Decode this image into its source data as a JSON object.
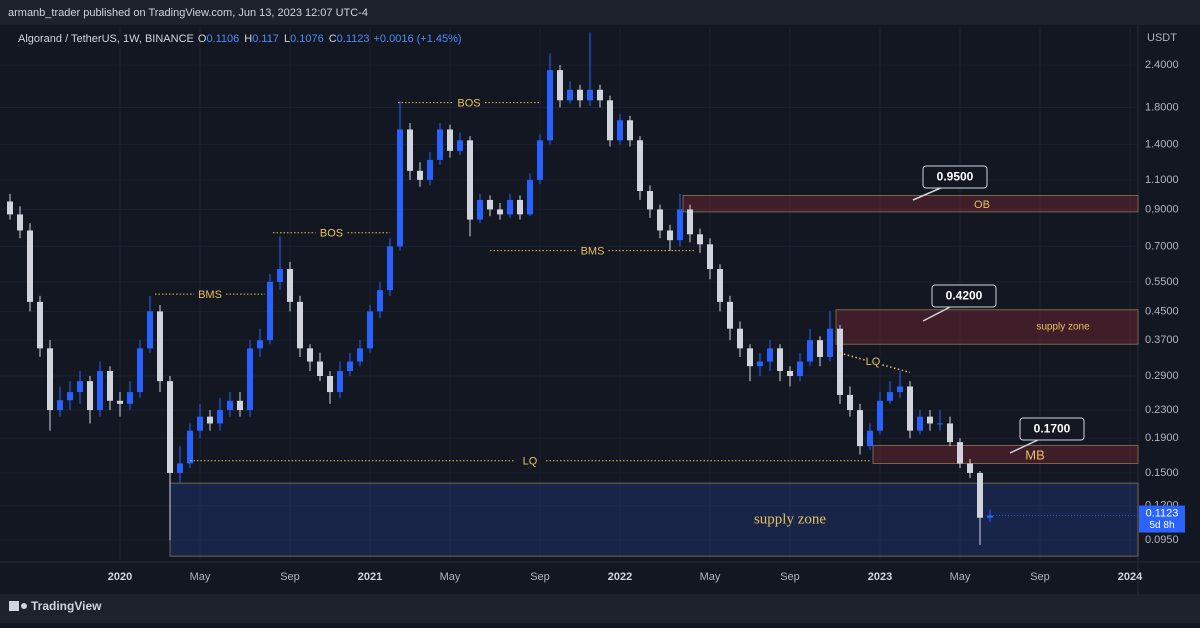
{
  "header": {
    "publisher": "armanb_trader published on TradingView.com, Jun 13, 2023 12:07 UTC-4",
    "footer": "TradingView"
  },
  "chart_data": {
    "type": "candlestick",
    "symbol": "Algorand / TetherUS, 1W, BINANCE",
    "ohlc_legend": [
      {
        "label": "O",
        "value": 0.1106
      },
      {
        "label": "H",
        "value": 0.117
      },
      {
        "label": "L",
        "value": 0.1076
      },
      {
        "label": "C",
        "value": 0.1123
      }
    ],
    "change": "+0.0016 (+1.45%)",
    "currency": "USDT",
    "log_scale": true,
    "up_color": "#2962ff",
    "down_color": "#d1d4dc",
    "categories": [
      null,
      null,
      null,
      null,
      null,
      null,
      null,
      null,
      null,
      null,
      null,
      "2020",
      null,
      null,
      null,
      null,
      null,
      null,
      null,
      "May",
      null,
      null,
      null,
      null,
      null,
      null,
      null,
      null,
      "Sep",
      null,
      null,
      null,
      null,
      null,
      null,
      null,
      "2021",
      null,
      null,
      null,
      null,
      null,
      null,
      null,
      "May",
      null,
      null,
      null,
      null,
      null,
      null,
      null,
      null,
      "Sep",
      null,
      null,
      null,
      null,
      null,
      null,
      null,
      "2022",
      null,
      null,
      null,
      null,
      null,
      null,
      null,
      null,
      "May",
      null,
      null,
      null,
      null,
      null,
      null,
      null,
      "Sep",
      null,
      null,
      null,
      null,
      null,
      null,
      null,
      null,
      "2023",
      null,
      null,
      null,
      null,
      null,
      null,
      null,
      "May",
      null,
      null,
      null,
      null,
      null,
      null,
      null,
      "Sep",
      null,
      null,
      null,
      null,
      null,
      null,
      null,
      null,
      "2024"
    ],
    "open": [
      0.95,
      0.87,
      0.78,
      0.48,
      0.35,
      0.23,
      0.246,
      0.26,
      0.28,
      0.23,
      0.3,
      0.245,
      0.24,
      0.26,
      0.35,
      0.45,
      0.28,
      0.15,
      0.16,
      0.2,
      0.22,
      0.21,
      0.23,
      0.245,
      0.23,
      0.35,
      0.37,
      0.55,
      0.6,
      0.48,
      0.35,
      0.32,
      0.29,
      0.26,
      0.3,
      0.32,
      0.35,
      0.45,
      0.52,
      0.7,
      1.55,
      1.17,
      1.1,
      1.26,
      1.55,
      1.34,
      1.44,
      0.84,
      0.96,
      0.9,
      0.87,
      0.96,
      0.87,
      1.1,
      1.44,
      2.32,
      1.89,
      2.03,
      1.89,
      2.03,
      1.89,
      1.44,
      1.65,
      1.44,
      1.02,
      0.9,
      0.78,
      0.73,
      0.9,
      0.76,
      0.71,
      0.6,
      0.48,
      0.4,
      0.35,
      0.31,
      0.32,
      0.35,
      0.3,
      0.29,
      0.32,
      0.37,
      0.33,
      0.4,
      0.255,
      0.23,
      0.18,
      0.2,
      0.245,
      0.26,
      0.27,
      0.2,
      0.22,
      0.21,
      0.21,
      0.185,
      0.16,
      0.15,
      0.1106,
      null,
      null,
      null,
      null,
      null,
      null,
      null,
      null,
      null,
      null,
      null,
      null,
      null,
      null
    ],
    "high": [
      1.0,
      0.92,
      0.82,
      0.5,
      0.37,
      0.27,
      0.28,
      0.3,
      0.29,
      0.32,
      0.31,
      0.26,
      0.28,
      0.37,
      0.5,
      0.47,
      0.29,
      0.18,
      0.21,
      0.24,
      0.23,
      0.25,
      0.26,
      0.26,
      0.37,
      0.4,
      0.58,
      0.75,
      0.63,
      0.5,
      0.36,
      0.34,
      0.3,
      0.32,
      0.34,
      0.37,
      0.47,
      0.55,
      0.74,
      1.88,
      1.62,
      1.24,
      1.33,
      1.62,
      1.6,
      1.52,
      1.48,
      1.0,
      0.99,
      0.94,
      1.0,
      0.99,
      1.15,
      1.5,
      2.6,
      2.4,
      2.15,
      2.1,
      3.0,
      2.1,
      1.95,
      1.72,
      1.7,
      1.48,
      1.06,
      0.93,
      0.81,
      1.0,
      0.93,
      0.79,
      0.74,
      0.62,
      0.5,
      0.42,
      0.36,
      0.34,
      0.37,
      0.36,
      0.31,
      0.34,
      0.4,
      0.38,
      0.45,
      0.41,
      0.27,
      0.24,
      0.21,
      0.26,
      0.28,
      0.3,
      0.28,
      0.23,
      0.23,
      0.23,
      0.22,
      0.19,
      0.165,
      0.152,
      0.117,
      null,
      null,
      null,
      null,
      null,
      null,
      null,
      null,
      null,
      null,
      null,
      null,
      null,
      null
    ],
    "low": [
      0.84,
      0.74,
      0.45,
      0.33,
      0.2,
      0.22,
      0.23,
      0.24,
      0.21,
      0.22,
      0.23,
      0.22,
      0.23,
      0.25,
      0.34,
      0.26,
      0.095,
      0.14,
      0.155,
      0.19,
      0.2,
      0.2,
      0.22,
      0.22,
      0.22,
      0.33,
      0.36,
      0.52,
      0.45,
      0.33,
      0.3,
      0.28,
      0.24,
      0.25,
      0.29,
      0.31,
      0.34,
      0.43,
      0.5,
      0.68,
      1.1,
      1.05,
      1.06,
      1.22,
      1.28,
      1.3,
      0.75,
      0.82,
      0.86,
      0.84,
      0.85,
      0.84,
      0.86,
      1.07,
      1.4,
      1.8,
      1.85,
      1.8,
      1.82,
      1.8,
      1.38,
      1.4,
      1.38,
      0.96,
      0.85,
      0.74,
      0.68,
      0.7,
      0.72,
      0.67,
      0.56,
      0.45,
      0.37,
      0.33,
      0.28,
      0.29,
      0.3,
      0.28,
      0.27,
      0.28,
      0.31,
      0.31,
      0.32,
      0.24,
      0.22,
      0.17,
      0.175,
      0.195,
      0.24,
      0.25,
      0.19,
      0.195,
      0.2,
      0.2,
      0.18,
      0.155,
      0.145,
      0.092,
      0.1076,
      null,
      null,
      null,
      null,
      null,
      null,
      null,
      null,
      null,
      null,
      null,
      null,
      null,
      null
    ],
    "close": [
      0.87,
      0.78,
      0.48,
      0.35,
      0.23,
      0.246,
      0.26,
      0.28,
      0.23,
      0.3,
      0.245,
      0.24,
      0.26,
      0.35,
      0.45,
      0.28,
      0.15,
      0.16,
      0.2,
      0.22,
      0.21,
      0.23,
      0.245,
      0.23,
      0.35,
      0.37,
      0.55,
      0.6,
      0.48,
      0.35,
      0.32,
      0.29,
      0.26,
      0.3,
      0.32,
      0.35,
      0.45,
      0.52,
      0.7,
      1.55,
      1.17,
      1.1,
      1.26,
      1.55,
      1.34,
      1.44,
      0.84,
      0.96,
      0.9,
      0.87,
      0.96,
      0.87,
      1.1,
      1.44,
      2.32,
      1.89,
      2.03,
      1.89,
      2.03,
      1.89,
      1.44,
      1.65,
      1.44,
      1.02,
      0.9,
      0.78,
      0.73,
      0.9,
      0.76,
      0.71,
      0.6,
      0.48,
      0.4,
      0.35,
      0.31,
      0.32,
      0.35,
      0.3,
      0.29,
      0.32,
      0.37,
      0.33,
      0.4,
      0.255,
      0.23,
      0.18,
      0.2,
      0.245,
      0.26,
      0.27,
      0.2,
      0.22,
      0.21,
      0.21,
      0.185,
      0.16,
      0.15,
      0.1106,
      0.1123,
      null,
      null,
      null,
      null,
      null,
      null,
      null,
      null,
      null,
      null,
      null,
      null,
      null,
      null
    ],
    "ylim": [
      0.083,
      3.09
    ],
    "yticks": [
      {
        "value": 0.095,
        "label": "0.0950"
      },
      {
        "value": 0.12,
        "label": "0.1200"
      },
      {
        "value": 0.15,
        "label": "0.1500"
      },
      {
        "value": 0.19,
        "label": "0.1900"
      },
      {
        "value": 0.23,
        "label": "0.2300"
      },
      {
        "value": 0.29,
        "label": "0.2900"
      },
      {
        "value": 0.37,
        "label": "0.3700"
      },
      {
        "value": 0.45,
        "label": "0.4500"
      },
      {
        "value": 0.55,
        "label": "0.5500"
      },
      {
        "value": 0.7,
        "label": "0.7000"
      },
      {
        "value": 0.9,
        "label": "0.9000"
      },
      {
        "value": 1.1,
        "label": "1.1000"
      },
      {
        "value": 1.4,
        "label": "1.4000"
      },
      {
        "value": 1.8,
        "label": "1.8000"
      },
      {
        "value": 2.4,
        "label": "2.4000"
      }
    ],
    "levels": [
      {
        "label": "BMS",
        "price": 0.506
      },
      {
        "label": "BOS",
        "price": 0.768
      },
      {
        "label": "BOS",
        "price": 1.86
      },
      {
        "label": "BMS",
        "price": 0.68
      },
      {
        "label": "LQ",
        "price": 0.163
      }
    ],
    "trend_line": {
      "label": "LQ",
      "prices": [
        0.339,
        0.297
      ]
    },
    "zones": [
      {
        "label": "OB",
        "top": 0.99,
        "bottom": 0.885
      },
      {
        "label": "supply zone",
        "top": 0.455,
        "bottom": 0.36
      },
      {
        "label": "MB",
        "top": 0.181,
        "bottom": 0.16
      },
      {
        "label": "supply zone",
        "top": 0.14,
        "bottom": 0.0852
      }
    ],
    "callouts": [
      {
        "value": 0.95,
        "label": "0.9500"
      },
      {
        "value": 0.42,
        "label": "0.4200"
      },
      {
        "value": 0.17,
        "label": "0.1700"
      }
    ],
    "last_price": 0.1123,
    "countdown": "5d 8h"
  }
}
